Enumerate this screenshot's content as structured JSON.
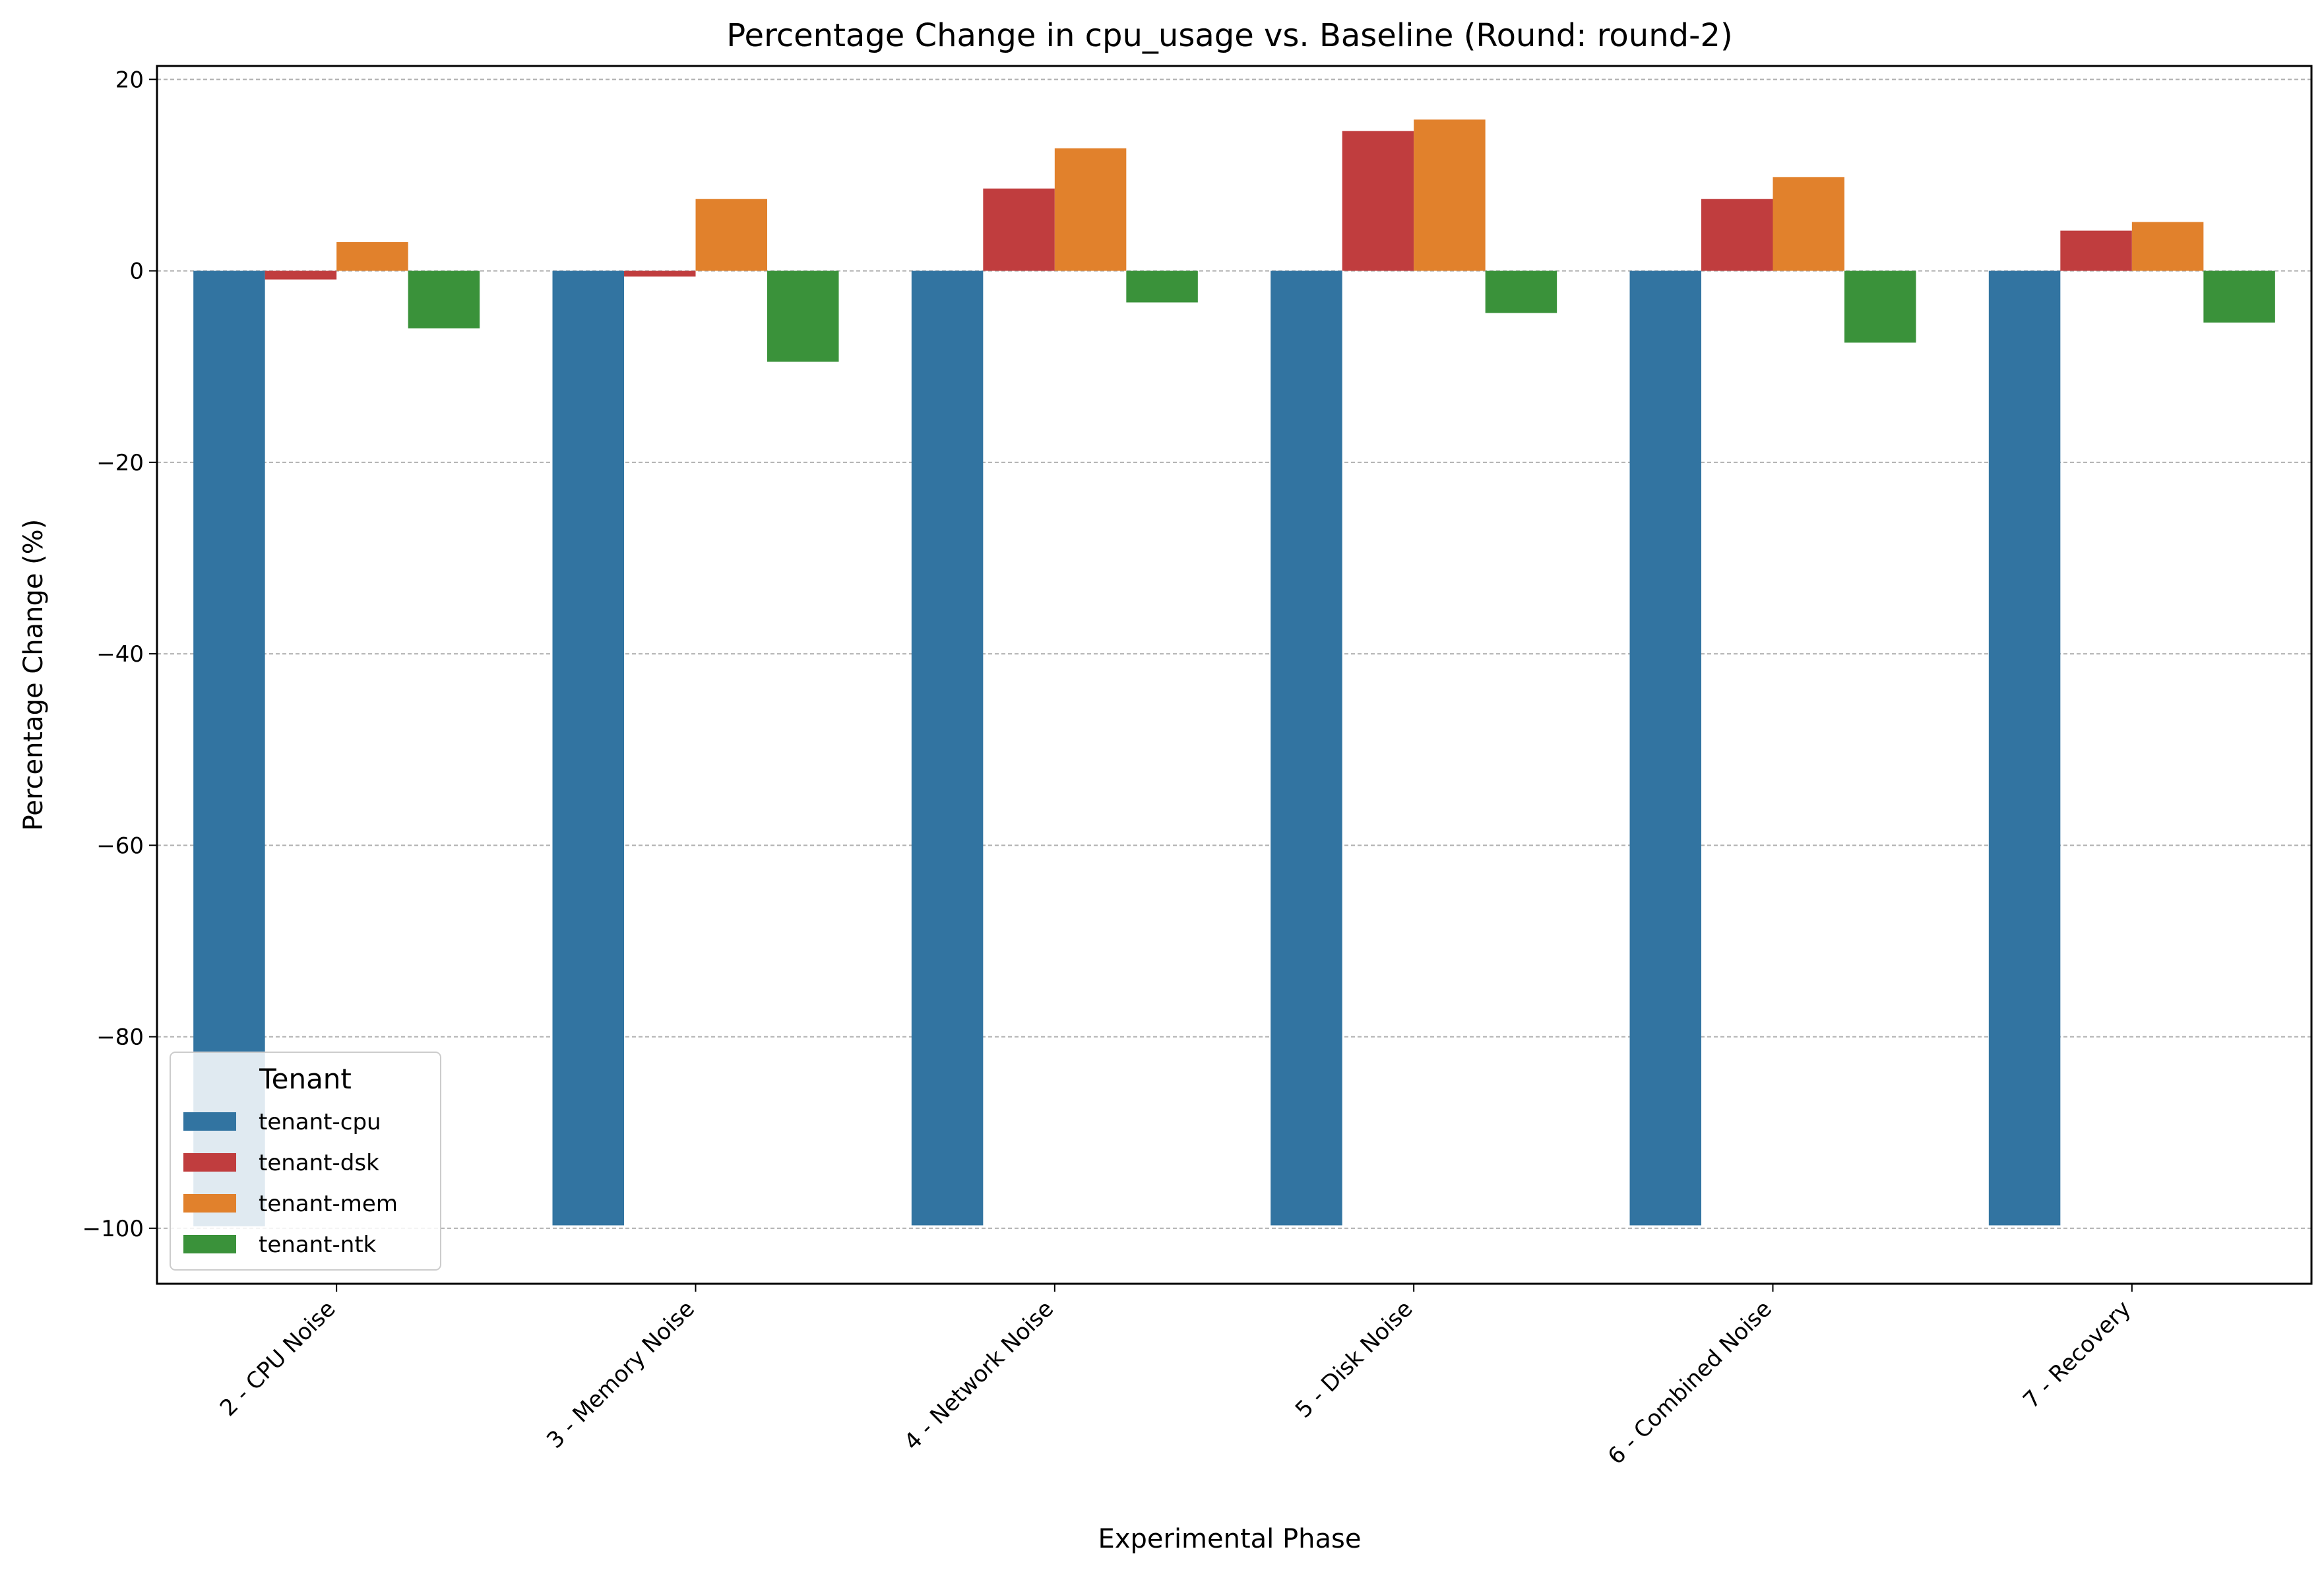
{
  "chart_data": {
    "type": "bar",
    "title": "Percentage Change in cpu_usage vs. Baseline (Round: round-2)",
    "xlabel": "Experimental Phase",
    "ylabel": "Percentage Change (%)",
    "ylim": [
      -105.8,
      21.4
    ],
    "yticks": [
      20,
      0,
      -20,
      -40,
      -60,
      -80,
      -100
    ],
    "ytick_labels": [
      "20",
      "0",
      "−20",
      "−40",
      "−60",
      "−80",
      "−100"
    ],
    "grid": "y-dashed",
    "categories": [
      "2 - CPU Noise",
      "3 - Memory Noise",
      "4 - Network Noise",
      "5 - Disk Noise",
      "6 - Combined Noise",
      "7 - Recovery"
    ],
    "series": [
      {
        "name": "tenant-cpu",
        "color": "#3274a1",
        "values": [
          -99.8,
          -99.7,
          -99.7,
          -99.7,
          -99.7,
          -99.7
        ]
      },
      {
        "name": "tenant-dsk",
        "color": "#c03d3e",
        "values": [
          -0.9,
          -0.6,
          8.6,
          14.6,
          7.5,
          4.2
        ]
      },
      {
        "name": "tenant-mem",
        "color": "#e1812c",
        "values": [
          3.0,
          7.5,
          12.8,
          15.8,
          9.8,
          5.1
        ]
      },
      {
        "name": "tenant-ntk",
        "color": "#3a923a",
        "values": [
          -6.0,
          -9.5,
          -3.3,
          -4.4,
          -7.5,
          -5.4
        ]
      }
    ],
    "legend": {
      "title": "Tenant",
      "placement": "lower-left"
    }
  }
}
